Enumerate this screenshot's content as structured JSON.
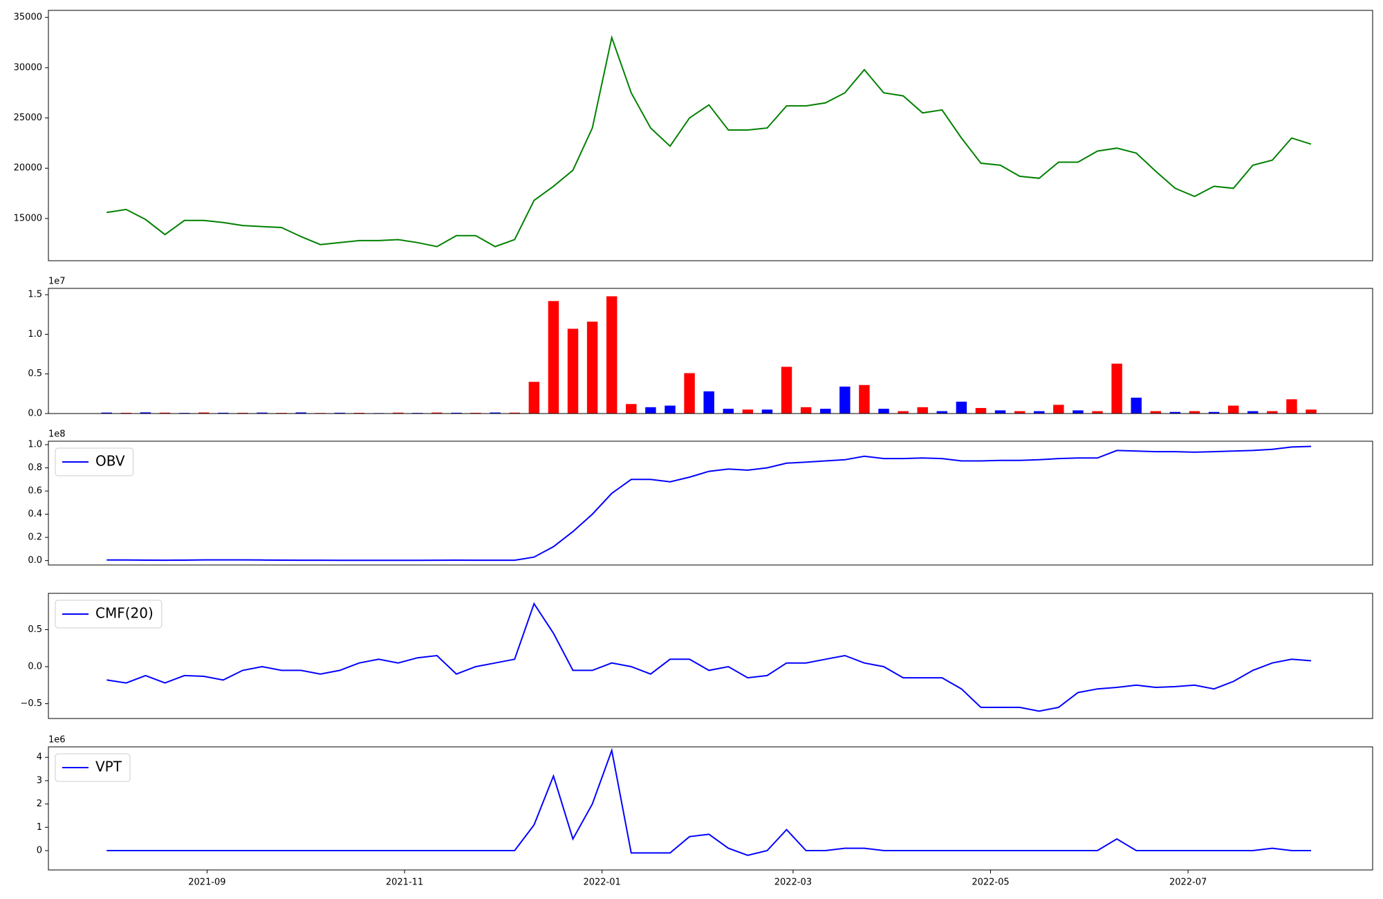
{
  "chart_data": [
    {
      "type": "line",
      "x": [
        0,
        6,
        12,
        18,
        24,
        30,
        36,
        42,
        48,
        54,
        60,
        66,
        72,
        78,
        84,
        90,
        96,
        102,
        108,
        114,
        120,
        126,
        132,
        138,
        144,
        150,
        156,
        162,
        168,
        174,
        180,
        186,
        192,
        198,
        204,
        210,
        216,
        222,
        228,
        234,
        240,
        246,
        252,
        258,
        264,
        270,
        276,
        282,
        288,
        294,
        300,
        306,
        312,
        318,
        324,
        330,
        336,
        342,
        348,
        354,
        360,
        366,
        372
      ],
      "series": [
        {
          "color": "#008000",
          "values": [
            15600,
            15900,
            14900,
            13400,
            14800,
            14800,
            14600,
            14300,
            14200,
            14100,
            13200,
            12400,
            12600,
            12800,
            12800,
            12900,
            12600,
            12200,
            13300,
            13300,
            12200,
            12900,
            16800,
            18200,
            19800,
            24000,
            33000,
            27500,
            24000,
            22200,
            25000,
            26300,
            23800,
            23800,
            24000,
            26200,
            26200,
            26500,
            27500,
            29800,
            27500,
            27200,
            25500,
            25800,
            23000,
            20500,
            20300,
            19200,
            19000,
            20600,
            20600,
            21700,
            22000,
            21500,
            19700,
            18000,
            17200,
            18200,
            18000,
            20300,
            20800,
            23000,
            22400
          ]
        }
      ],
      "xlim": [
        -18,
        391
      ],
      "ylim": [
        10800,
        35700
      ],
      "yticks": [
        15000,
        20000,
        25000,
        30000,
        35000
      ]
    },
    {
      "type": "bar",
      "y_offset_label": "1e7",
      "x": [
        0,
        6,
        12,
        18,
        24,
        30,
        36,
        42,
        48,
        54,
        60,
        66,
        72,
        78,
        84,
        90,
        96,
        102,
        108,
        114,
        120,
        126,
        132,
        138,
        144,
        150,
        156,
        162,
        168,
        174,
        180,
        186,
        192,
        198,
        204,
        210,
        216,
        222,
        228,
        234,
        240,
        246,
        252,
        258,
        264,
        270,
        276,
        282,
        288,
        294,
        300,
        306,
        312,
        318,
        324,
        330,
        336,
        342,
        348,
        354,
        360,
        366,
        372
      ],
      "values": [
        120000,
        90000,
        150000,
        110000,
        80000,
        130000,
        100000,
        90000,
        120000,
        80000,
        140000,
        70000,
        100000,
        90000,
        60000,
        110000,
        80000,
        120000,
        100000,
        90000,
        130000,
        110000,
        4000000,
        14200000,
        10700000,
        11600000,
        14800000,
        1200000,
        800000,
        1000000,
        5100000,
        2800000,
        600000,
        500000,
        500000,
        5900000,
        800000,
        600000,
        3400000,
        3600000,
        600000,
        300000,
        800000,
        300000,
        1500000,
        700000,
        400000,
        300000,
        300000,
        1100000,
        400000,
        300000,
        6300000,
        2000000,
        300000,
        200000,
        300000,
        200000,
        1000000,
        300000,
        300000,
        1800000,
        500000
      ],
      "colors": [
        "blue",
        "red",
        "blue",
        "red",
        "blue",
        "red",
        "blue",
        "red",
        "blue",
        "red",
        "blue",
        "red",
        "blue",
        "red",
        "blue",
        "red",
        "blue",
        "red",
        "blue",
        "red",
        "blue",
        "red",
        "red",
        "red",
        "red",
        "red",
        "red",
        "red",
        "blue",
        "blue",
        "red",
        "blue",
        "blue",
        "red",
        "blue",
        "red",
        "red",
        "blue",
        "blue",
        "red",
        "blue",
        "red",
        "red",
        "blue",
        "blue",
        "red",
        "blue",
        "red",
        "blue",
        "red",
        "blue",
        "red",
        "red",
        "blue",
        "red",
        "blue",
        "red",
        "blue",
        "red",
        "blue",
        "red",
        "red",
        "red"
      ],
      "xlim": [
        -18,
        391
      ],
      "ylim": [
        0,
        15800000
      ],
      "yticks": [
        {
          "value": 0,
          "label": "0.0"
        },
        {
          "value": 5000000,
          "label": "0.5"
        },
        {
          "value": 10000000,
          "label": "1.0"
        },
        {
          "value": 15000000,
          "label": "1.5"
        }
      ]
    },
    {
      "type": "line",
      "y_offset_label": "1e8",
      "legend": "upper left",
      "x": [
        0,
        6,
        12,
        18,
        24,
        30,
        36,
        42,
        48,
        54,
        60,
        66,
        72,
        78,
        84,
        90,
        96,
        102,
        108,
        114,
        120,
        126,
        132,
        138,
        144,
        150,
        156,
        162,
        168,
        174,
        180,
        186,
        192,
        198,
        204,
        210,
        216,
        222,
        228,
        234,
        240,
        246,
        252,
        258,
        264,
        270,
        276,
        282,
        288,
        294,
        300,
        306,
        312,
        318,
        324,
        330,
        336,
        342,
        348,
        354,
        360,
        366,
        372
      ],
      "series": [
        {
          "name": "OBV",
          "color": "#0000ff",
          "values": [
            500000,
            500000,
            400000,
            300000,
            400000,
            600000,
            600000,
            600000,
            500000,
            400000,
            300000,
            300000,
            200000,
            200000,
            200000,
            200000,
            200000,
            300000,
            400000,
            300000,
            300000,
            300000,
            3000000,
            12000000,
            25000000,
            40000000,
            58000000,
            70000000,
            70000000,
            68000000,
            72000000,
            77000000,
            79000000,
            78000000,
            80000000,
            84000000,
            85000000,
            86000000,
            87000000,
            90000000,
            88000000,
            88000000,
            88500000,
            88000000,
            86000000,
            86000000,
            86500000,
            86500000,
            87000000,
            88000000,
            88500000,
            88500000,
            95000000,
            94500000,
            94000000,
            94000000,
            93500000,
            94000000,
            94500000,
            95000000,
            96000000,
            98000000,
            98500000
          ]
        }
      ],
      "xlim": [
        -18,
        391
      ],
      "ylim": [
        -3800000,
        103000000
      ],
      "yticks": [
        {
          "value": 0,
          "label": "0.0"
        },
        {
          "value": 20000000,
          "label": "0.2"
        },
        {
          "value": 40000000,
          "label": "0.4"
        },
        {
          "value": 60000000,
          "label": "0.6"
        },
        {
          "value": 80000000,
          "label": "0.8"
        },
        {
          "value": 100000000,
          "label": "1.0"
        }
      ]
    },
    {
      "type": "line",
      "legend": "upper left",
      "x": [
        0,
        6,
        12,
        18,
        24,
        30,
        36,
        42,
        48,
        54,
        60,
        66,
        72,
        78,
        84,
        90,
        96,
        102,
        108,
        114,
        120,
        126,
        132,
        138,
        144,
        150,
        156,
        162,
        168,
        174,
        180,
        186,
        192,
        198,
        204,
        210,
        216,
        222,
        228,
        234,
        240,
        246,
        252,
        258,
        264,
        270,
        276,
        282,
        288,
        294,
        300,
        306,
        312,
        318,
        324,
        330,
        336,
        342,
        348,
        354,
        360,
        366,
        372
      ],
      "series": [
        {
          "name": "CMF(20)",
          "color": "#0000ff",
          "values": [
            -0.18,
            -0.22,
            -0.12,
            -0.22,
            -0.12,
            -0.13,
            -0.18,
            -0.05,
            0.0,
            -0.05,
            -0.05,
            -0.1,
            -0.05,
            0.05,
            0.1,
            0.05,
            0.12,
            0.15,
            -0.1,
            0.0,
            0.05,
            0.1,
            0.85,
            0.45,
            -0.05,
            -0.05,
            0.05,
            0.0,
            -0.1,
            0.1,
            0.1,
            -0.05,
            0.0,
            -0.15,
            -0.12,
            0.05,
            0.05,
            0.1,
            0.15,
            0.05,
            0.0,
            -0.15,
            -0.15,
            -0.15,
            -0.3,
            -0.55,
            -0.55,
            -0.55,
            -0.6,
            -0.55,
            -0.35,
            -0.3,
            -0.28,
            -0.25,
            -0.28,
            -0.27,
            -0.25,
            -0.3,
            -0.2,
            -0.05,
            0.05,
            0.1,
            0.08
          ]
        }
      ],
      "xlim": [
        -18,
        391
      ],
      "ylim": [
        -0.7,
        0.99
      ],
      "yticks": [
        {
          "value": -0.5,
          "label": "−0.5"
        },
        {
          "value": 0,
          "label": "0.0"
        },
        {
          "value": 0.5,
          "label": "0.5"
        }
      ]
    },
    {
      "type": "line",
      "y_offset_label": "1e6",
      "legend": "upper left",
      "x": [
        0,
        6,
        12,
        18,
        24,
        30,
        36,
        42,
        48,
        54,
        60,
        66,
        72,
        78,
        84,
        90,
        96,
        102,
        108,
        114,
        120,
        126,
        132,
        138,
        144,
        150,
        156,
        162,
        168,
        174,
        180,
        186,
        192,
        198,
        204,
        210,
        216,
        222,
        228,
        234,
        240,
        246,
        252,
        258,
        264,
        270,
        276,
        282,
        288,
        294,
        300,
        306,
        312,
        318,
        324,
        330,
        336,
        342,
        348,
        354,
        360,
        366,
        372
      ],
      "series": [
        {
          "name": "VPT",
          "color": "#0000ff",
          "values": [
            0,
            0,
            0,
            0,
            0,
            0,
            0,
            0,
            0,
            0,
            0,
            0,
            0,
            0,
            0,
            0,
            0,
            0,
            0,
            0,
            0,
            0,
            1100000,
            3200000,
            500000,
            2000000,
            4300000,
            -100000,
            -100000,
            -100000,
            600000,
            700000,
            100000,
            -200000,
            0,
            900000,
            0,
            0,
            100000,
            100000,
            0,
            0,
            0,
            0,
            0,
            0,
            0,
            0,
            0,
            0,
            0,
            0,
            500000,
            0,
            0,
            0,
            0,
            0,
            0,
            0,
            100000,
            0,
            0
          ]
        }
      ],
      "xlim": [
        -18,
        391
      ],
      "ylim": [
        -830000,
        4450000
      ],
      "yticks": [
        0,
        {
          "value": 1000000,
          "label": "1"
        },
        {
          "value": 2000000,
          "label": "2"
        },
        {
          "value": 3000000,
          "label": "3"
        },
        {
          "value": 4000000,
          "label": "4"
        }
      ],
      "xticks": [
        {
          "value": 31,
          "label": "2021-09"
        },
        {
          "value": 92,
          "label": "2021-11"
        },
        {
          "value": 153,
          "label": "2022-01"
        },
        {
          "value": 212,
          "label": "2022-03"
        },
        {
          "value": 273,
          "label": "2022-05"
        },
        {
          "value": 334,
          "label": "2022-07"
        }
      ]
    }
  ]
}
